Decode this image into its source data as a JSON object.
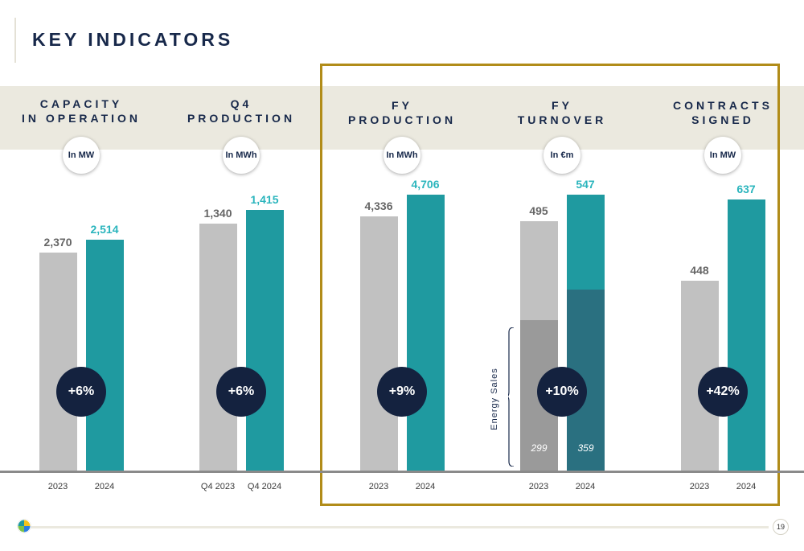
{
  "page": {
    "title": "KEY INDICATORS",
    "page_number": "19"
  },
  "colors": {
    "prior": "#c1c1c1",
    "current": "#1f9aa0",
    "prior_energy": "#9a9a9a",
    "current_energy": "#2a7080",
    "current_label": "#2bb5bd",
    "prior_label": "#666666",
    "navy": "#14223f",
    "highlight_box": "#b18c19"
  },
  "chart_data": [
    {
      "type": "bar",
      "title": "CAPACITY IN OPERATION",
      "unit": "In MW",
      "categories": [
        "2023",
        "2024"
      ],
      "values": [
        2370,
        2514
      ],
      "value_labels": [
        "2,370",
        "2,514"
      ],
      "growth": "+6%"
    },
    {
      "type": "bar",
      "title": "Q4 PRODUCTION",
      "unit": "In MWh",
      "categories": [
        "Q4 2023",
        "Q4 2024"
      ],
      "values": [
        1340,
        1415
      ],
      "value_labels": [
        "1,340",
        "1,415"
      ],
      "growth": "+6%"
    },
    {
      "type": "bar",
      "title": "FY PRODUCTION",
      "unit": "In MWh",
      "categories": [
        "2023",
        "2024"
      ],
      "values": [
        4336,
        4706
      ],
      "value_labels": [
        "4,336",
        "4,706"
      ],
      "growth": "+9%"
    },
    {
      "type": "bar",
      "title": "FY TURNOVER",
      "unit": "In €m",
      "categories": [
        "2023",
        "2024"
      ],
      "values": [
        495,
        547
      ],
      "value_labels": [
        "495",
        "547"
      ],
      "growth": "+10%",
      "segment": {
        "label": "Energy Sales",
        "values": [
          299,
          359
        ]
      }
    },
    {
      "type": "bar",
      "title": "CONTRACTS SIGNED",
      "unit": "In MW",
      "categories": [
        "2023",
        "2024"
      ],
      "values": [
        448,
        637
      ],
      "value_labels": [
        "448",
        "637"
      ],
      "growth": "+42%"
    }
  ]
}
